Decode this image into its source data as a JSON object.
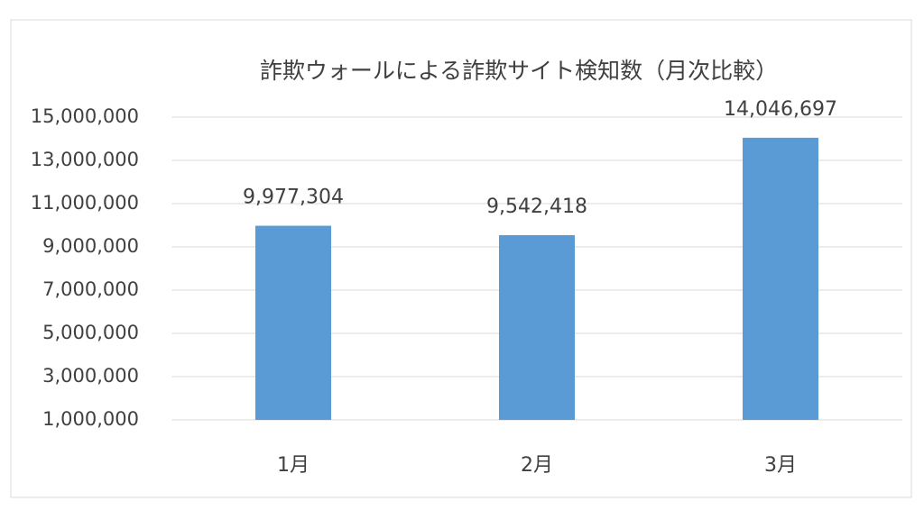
{
  "chart_data": {
    "type": "bar",
    "title": "詐欺ウォールによる詐欺サイト検知数（月次比較）",
    "categories": [
      "1月",
      "2月",
      "3月"
    ],
    "values": [
      9977304,
      9542418,
      14046697
    ],
    "value_labels": [
      "9,977,304",
      "9,542,418",
      "14,046,697"
    ],
    "color": "#5b9bd5",
    "ylim": [
      1000000,
      15000000
    ],
    "yticks": [
      {
        "value": 1000000,
        "label": "1,000,000"
      },
      {
        "value": 3000000,
        "label": "3,000,000"
      },
      {
        "value": 5000000,
        "label": "5,000,000"
      },
      {
        "value": 7000000,
        "label": "7,000,000"
      },
      {
        "value": 9000000,
        "label": "9,000,000"
      },
      {
        "value": 11000000,
        "label": "11,000,000"
      },
      {
        "value": 13000000,
        "label": "13,000,000"
      },
      {
        "value": 15000000,
        "label": "15,000,000"
      }
    ],
    "grid": true
  }
}
